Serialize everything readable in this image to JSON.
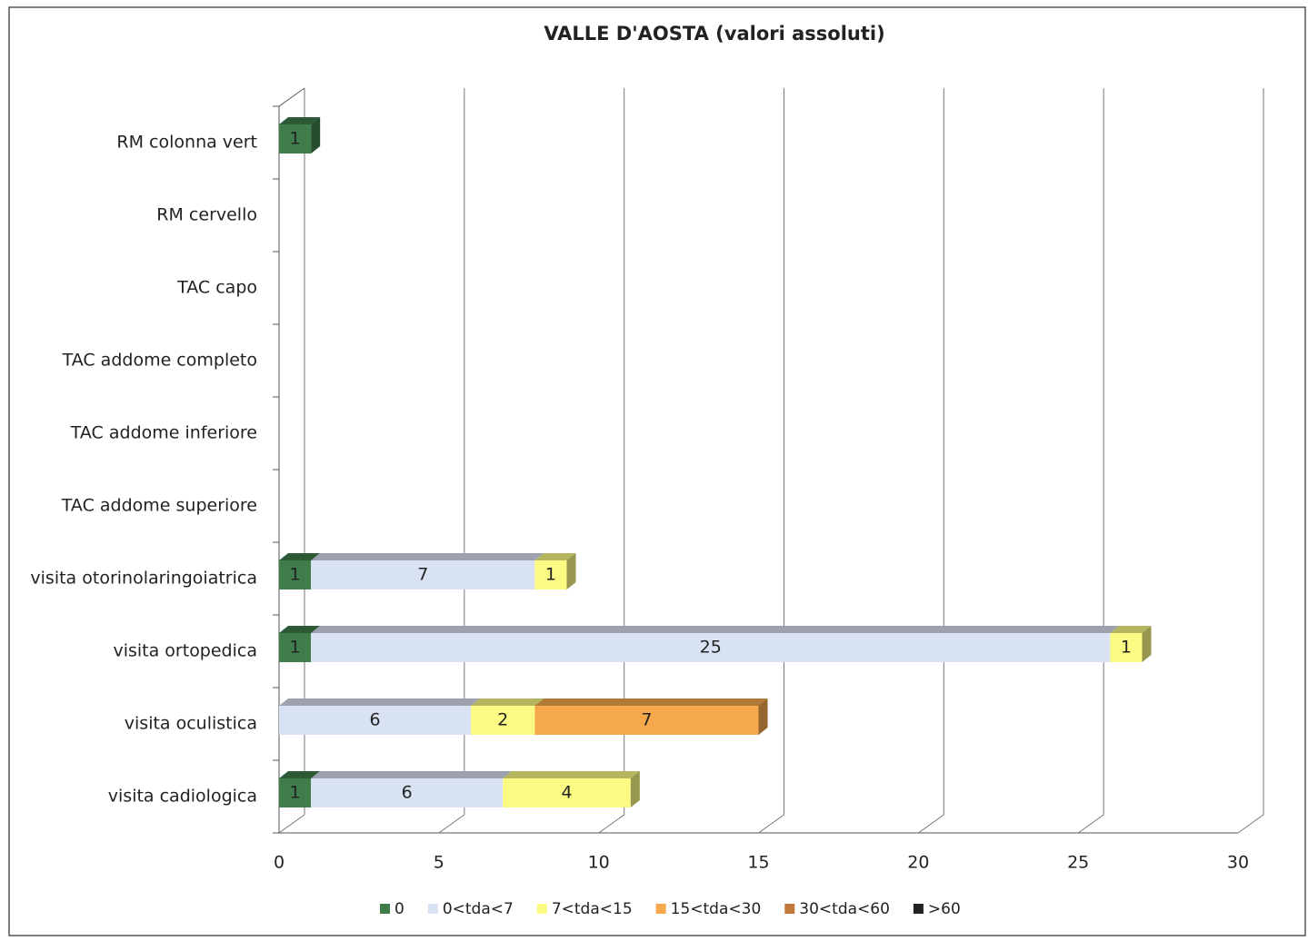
{
  "chart_data": {
    "type": "bar",
    "orientation": "horizontal",
    "stacked": true,
    "three_d": true,
    "title": "VALLE D'AOSTA (valori assoluti)",
    "categories": [
      "RM colonna vert",
      "RM cervello",
      "TAC capo",
      "TAC addome completo",
      "TAC addome inferiore",
      "TAC addome superiore",
      "visita otorinolaringoiatrica",
      "visita ortopedica",
      "visita oculistica",
      "visita cadiologica"
    ],
    "series": [
      {
        "name": "0",
        "color": "#3f7d4b",
        "values": [
          1,
          null,
          null,
          null,
          null,
          null,
          1,
          1,
          null,
          1
        ]
      },
      {
        "name": "0<tda<7",
        "color": "#d9e2f3",
        "values": [
          null,
          null,
          null,
          null,
          null,
          null,
          7,
          25,
          6,
          6
        ]
      },
      {
        "name": "7<tda<15",
        "color": "#fbfb84",
        "values": [
          null,
          null,
          null,
          null,
          null,
          null,
          1,
          1,
          2,
          4
        ]
      },
      {
        "name": "15<tda<30",
        "color": "#f6a94c",
        "values": [
          null,
          null,
          null,
          null,
          null,
          null,
          null,
          null,
          7,
          null
        ]
      },
      {
        "name": "30<tda<60",
        "color": "#c27a3c",
        "values": [
          null,
          null,
          null,
          null,
          null,
          null,
          null,
          null,
          null,
          null
        ]
      },
      {
        "name": ">60",
        "color": "#222222",
        "values": [
          null,
          null,
          null,
          null,
          null,
          null,
          null,
          null,
          null,
          null
        ]
      }
    ],
    "xlim": [
      0,
      30
    ],
    "xticks": [
      0,
      5,
      10,
      15,
      20,
      25,
      30
    ],
    "grid": true,
    "legend": "bottom"
  }
}
